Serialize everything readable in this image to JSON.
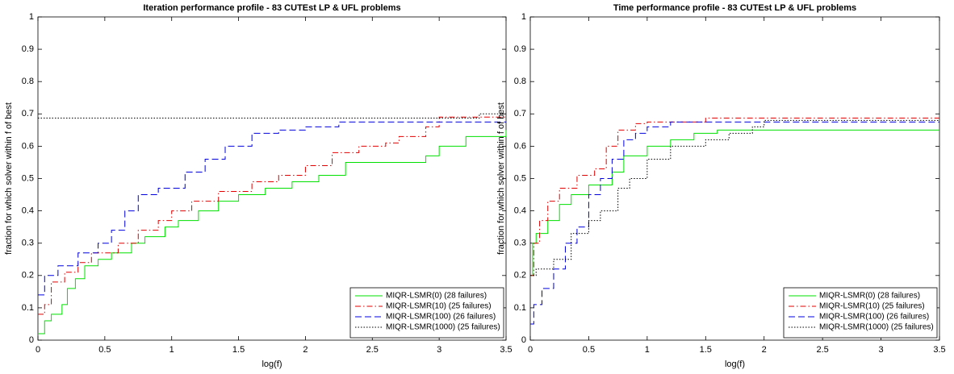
{
  "chart_data": [
    {
      "type": "line",
      "step": true,
      "title": "Iteration performance profile - 83 CUTEst LP & UFL problems",
      "x_label": "log(f)",
      "y_label": "fraction for which solver within f of best",
      "xlim": [
        0,
        3.5
      ],
      "ylim": [
        0,
        1
      ],
      "xticks": [
        0,
        0.5,
        1,
        1.5,
        2,
        2.5,
        3,
        3.5
      ],
      "yticks": [
        0,
        0.1,
        0.2,
        0.3,
        0.4,
        0.5,
        0.6,
        0.7,
        0.8,
        0.9,
        1
      ],
      "grid": false,
      "legend": "lower right",
      "series": [
        {
          "name": "MIQR-LSMR(0) (28 failures)",
          "color": "#00e000",
          "style": "solid",
          "x": [
            0,
            0.05,
            0.1,
            0.18,
            0.22,
            0.28,
            0.35,
            0.45,
            0.55,
            0.7,
            0.8,
            0.95,
            1.05,
            1.2,
            1.35,
            1.5,
            1.7,
            1.9,
            2.1,
            2.3,
            2.9,
            3.0,
            3.2,
            3.5
          ],
          "values": [
            0.02,
            0.06,
            0.08,
            0.11,
            0.16,
            0.19,
            0.23,
            0.25,
            0.27,
            0.3,
            0.32,
            0.35,
            0.37,
            0.4,
            0.43,
            0.45,
            0.47,
            0.49,
            0.51,
            0.55,
            0.57,
            0.6,
            0.63,
            0.65
          ]
        },
        {
          "name": "MIQR-LSMR(10) (25 failures)",
          "color": "#e00000",
          "style": "dashdot",
          "x": [
            0,
            0.05,
            0.1,
            0.2,
            0.3,
            0.4,
            0.6,
            0.75,
            0.9,
            1.0,
            1.15,
            1.35,
            1.6,
            1.8,
            2.0,
            2.2,
            2.4,
            2.6,
            2.7,
            2.9,
            3.0,
            3.5
          ],
          "values": [
            0.08,
            0.11,
            0.18,
            0.21,
            0.24,
            0.27,
            0.3,
            0.34,
            0.37,
            0.4,
            0.43,
            0.46,
            0.49,
            0.51,
            0.54,
            0.58,
            0.6,
            0.61,
            0.63,
            0.66,
            0.69,
            0.69
          ]
        },
        {
          "name": "MIQR-LSMR(100) (26 failures)",
          "color": "#0000e0",
          "style": "dashed",
          "x": [
            0,
            0.05,
            0.15,
            0.3,
            0.45,
            0.55,
            0.65,
            0.75,
            0.9,
            1.1,
            1.25,
            1.4,
            1.6,
            1.8,
            2.0,
            2.25,
            3.5
          ],
          "values": [
            0.14,
            0.2,
            0.23,
            0.27,
            0.3,
            0.34,
            0.4,
            0.45,
            0.47,
            0.52,
            0.56,
            0.6,
            0.64,
            0.65,
            0.66,
            0.675,
            0.675
          ]
        },
        {
          "name": "MIQR-LSMR(1000) (25 failures)",
          "color": "#000000",
          "style": "dotted",
          "x": [
            0,
            3.3,
            3.5
          ],
          "values": [
            0.687,
            0.7,
            0.7
          ]
        }
      ]
    },
    {
      "type": "line",
      "step": true,
      "title": "Time performance profile - 83 CUTEst LP & UFL problems",
      "x_label": "log(f)",
      "y_label": "fraction for which solver within f of best",
      "xlim": [
        0,
        3.5
      ],
      "ylim": [
        0,
        1
      ],
      "xticks": [
        0,
        0.5,
        1,
        1.5,
        2,
        2.5,
        3,
        3.5
      ],
      "yticks": [
        0,
        0.1,
        0.2,
        0.3,
        0.4,
        0.5,
        0.6,
        0.7,
        0.8,
        0.9,
        1
      ],
      "grid": false,
      "legend": "lower right",
      "series": [
        {
          "name": "MIQR-LSMR(0) (28 failures)",
          "color": "#00e000",
          "style": "solid",
          "x": [
            0,
            0.02,
            0.05,
            0.15,
            0.25,
            0.35,
            0.5,
            0.7,
            0.8,
            1.0,
            1.2,
            1.4,
            1.6,
            3.5
          ],
          "values": [
            0.2,
            0.3,
            0.33,
            0.37,
            0.42,
            0.45,
            0.48,
            0.52,
            0.57,
            0.6,
            0.62,
            0.64,
            0.65,
            0.65
          ]
        },
        {
          "name": "MIQR-LSMR(10) (25 failures)",
          "color": "#e00000",
          "style": "dashdot",
          "x": [
            0,
            0.03,
            0.08,
            0.15,
            0.25,
            0.4,
            0.55,
            0.65,
            0.75,
            0.9,
            1.0,
            1.5,
            3.5
          ],
          "values": [
            0.2,
            0.3,
            0.37,
            0.43,
            0.47,
            0.51,
            0.53,
            0.6,
            0.65,
            0.67,
            0.675,
            0.687,
            0.687
          ]
        },
        {
          "name": "MIQR-LSMR(100) (26 failures)",
          "color": "#0000e0",
          "style": "dashed",
          "x": [
            0,
            0.03,
            0.1,
            0.2,
            0.3,
            0.4,
            0.5,
            0.6,
            0.7,
            0.8,
            0.9,
            1.0,
            1.2,
            3.5
          ],
          "values": [
            0.05,
            0.11,
            0.16,
            0.22,
            0.3,
            0.35,
            0.45,
            0.5,
            0.56,
            0.62,
            0.64,
            0.66,
            0.675,
            0.675
          ]
        },
        {
          "name": "MIQR-LSMR(1000) (25 failures)",
          "color": "#000000",
          "style": "dotted",
          "x": [
            0,
            0.05,
            0.2,
            0.35,
            0.5,
            0.6,
            0.75,
            0.85,
            1.0,
            1.2,
            1.5,
            1.7,
            1.9,
            2.0,
            3.5
          ],
          "values": [
            0.2,
            0.22,
            0.25,
            0.33,
            0.37,
            0.4,
            0.47,
            0.5,
            0.56,
            0.6,
            0.62,
            0.64,
            0.66,
            0.68,
            0.68
          ]
        }
      ]
    }
  ]
}
